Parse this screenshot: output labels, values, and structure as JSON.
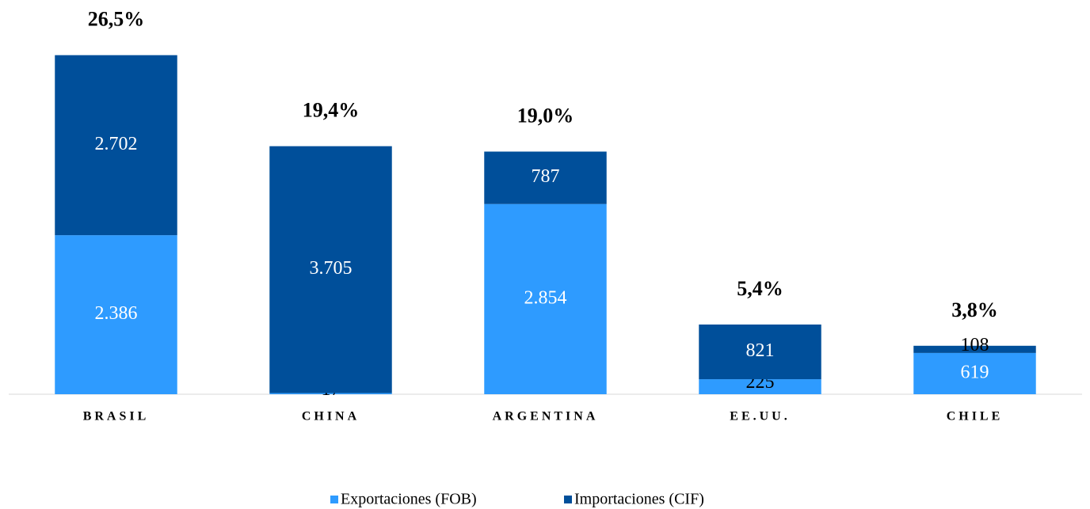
{
  "chart_data": {
    "type": "stacked_bar",
    "categories": [
      "BRASIL",
      "CHINA",
      "ARGENTINA",
      "EE.UU.",
      "CHILE"
    ],
    "series": [
      {
        "name": "Exportaciones (FOB)",
        "color": "#2e9bff",
        "values": [
          2386,
          17,
          2854,
          225,
          619
        ],
        "value_labels": [
          "2.386",
          "17",
          "2.854",
          "225",
          "619"
        ]
      },
      {
        "name": "Importaciones (CIF)",
        "color": "#004f9a",
        "values": [
          2702,
          3705,
          787,
          821,
          108
        ],
        "value_labels": [
          "2.702",
          "3.705",
          "787",
          "821",
          "108"
        ]
      }
    ],
    "annotations": [
      "26,5%",
      "19,4%",
      "19,0%",
      "5,4%",
      "3,8%"
    ],
    "ylim": [
      0,
      5500
    ]
  }
}
